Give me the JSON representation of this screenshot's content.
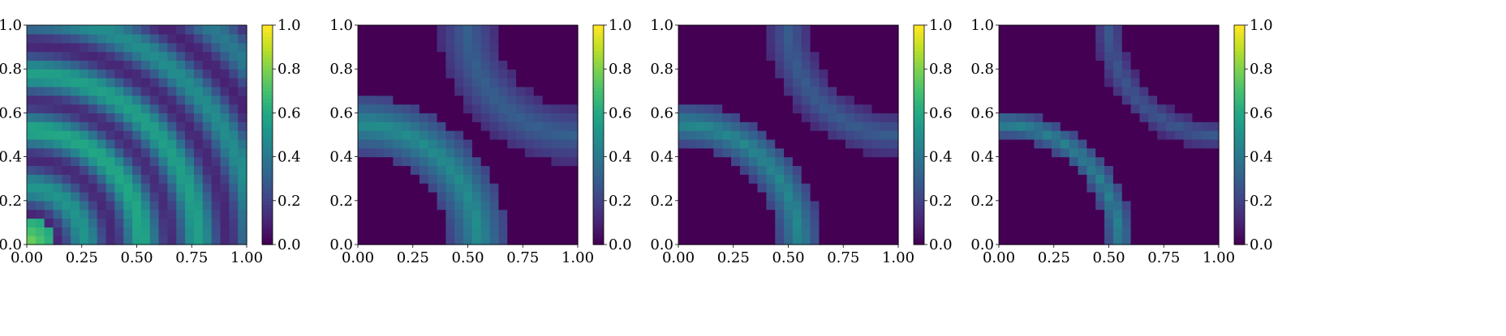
{
  "chart_data": [
    {
      "type": "heatmap",
      "pattern": "rings",
      "title": "",
      "xlabel": "",
      "ylabel": "",
      "xlim": [
        0,
        1
      ],
      "ylim": [
        0,
        1
      ],
      "grid_size": 25,
      "xticks": [
        "0.00",
        "0.25",
        "0.50",
        "0.75",
        "1.00"
      ],
      "yticks": [
        "0.0",
        "0.2",
        "0.4",
        "0.6",
        "0.8",
        "1.0"
      ],
      "colorbar": {
        "min": 0,
        "max": 1,
        "ticks": [
          "0.0",
          "0.2",
          "0.4",
          "0.6",
          "0.8",
          "1.0"
        ],
        "colormap": "viridis"
      }
    },
    {
      "type": "heatmap",
      "pattern": "bands",
      "band_width": 0.1,
      "peak": 0.5,
      "title": "",
      "xlabel": "",
      "ylabel": "",
      "xlim": [
        0,
        1
      ],
      "ylim": [
        0,
        1
      ],
      "grid_size": 25,
      "xticks": [
        "0.00",
        "0.25",
        "0.50",
        "0.75",
        "1.00"
      ],
      "yticks": [
        "0.0",
        "0.2",
        "0.4",
        "0.6",
        "0.8",
        "1.0"
      ],
      "colorbar": {
        "min": 0,
        "max": 1,
        "ticks": [
          "0.0",
          "0.2",
          "0.4",
          "0.6",
          "0.8",
          "1.0"
        ],
        "colormap": "viridis"
      }
    },
    {
      "type": "heatmap",
      "pattern": "bands",
      "band_width": 0.075,
      "peak": 0.48,
      "title": "",
      "xlabel": "",
      "ylabel": "",
      "xlim": [
        0,
        1
      ],
      "ylim": [
        0,
        1
      ],
      "grid_size": 25,
      "xticks": [
        "0.00",
        "0.25",
        "0.50",
        "0.75",
        "1.00"
      ],
      "yticks": [
        "0.0",
        "0.2",
        "0.4",
        "0.6",
        "0.8",
        "1.0"
      ],
      "colorbar": {
        "min": 0,
        "max": 1,
        "ticks": [
          "0.0",
          "0.2",
          "0.4",
          "0.6",
          "0.8",
          "1.0"
        ],
        "colormap": "viridis"
      }
    },
    {
      "type": "heatmap",
      "pattern": "bands",
      "band_width": 0.05,
      "peak": 0.45,
      "title": "",
      "xlabel": "",
      "ylabel": "",
      "xlim": [
        0,
        1
      ],
      "ylim": [
        0,
        1
      ],
      "grid_size": 25,
      "xticks": [
        "0.00",
        "0.25",
        "0.50",
        "0.75",
        "1.00"
      ],
      "yticks": [
        "0.0",
        "0.2",
        "0.4",
        "0.6",
        "0.8",
        "1.0"
      ],
      "colorbar": {
        "min": 0,
        "max": 1,
        "ticks": [
          "0.0",
          "0.2",
          "0.4",
          "0.6",
          "0.8",
          "1.0"
        ],
        "colormap": "viridis"
      }
    }
  ]
}
